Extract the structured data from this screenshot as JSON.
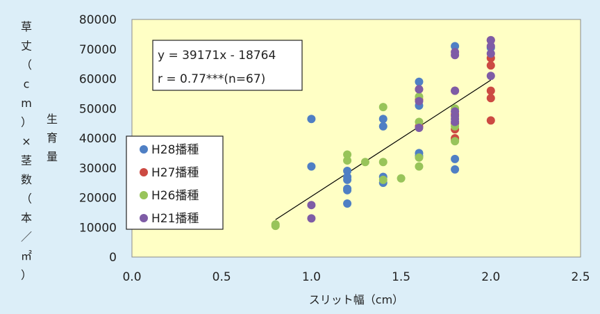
{
  "chart_data": {
    "type": "scatter",
    "title": "",
    "xlabel": "スリット幅（cm）",
    "ylabel_main": "草丈（cm）×茎数（本／㎡）",
    "ylabel_secondary": "生育量",
    "xlim": [
      0,
      2.5
    ],
    "ylim": [
      0,
      80000
    ],
    "x_ticks": [
      "0.0",
      "0.5",
      "1.0",
      "1.5",
      "2.0",
      "2.5"
    ],
    "y_ticks": [
      "0",
      "10000",
      "20000",
      "30000",
      "40000",
      "50000",
      "60000",
      "70000",
      "80000"
    ],
    "grid": false,
    "legend_position": "left",
    "annotation": {
      "equation": "y = 39171x - 18764",
      "r_value": "r = 0.77***(n=67)"
    },
    "trendline": {
      "slope": 39171,
      "intercept": -18764,
      "x_range": [
        0.8,
        2.0
      ]
    },
    "colors": {
      "plot_bg": "#ffffc5",
      "page_bg": "#dceef8",
      "H28": "#4f7fc4",
      "H27": "#cc4a42",
      "H26": "#98c45a",
      "H21": "#7e5ca6"
    },
    "series": [
      {
        "name": "H28播種",
        "color_key": "H28",
        "points": [
          [
            1.0,
            46500
          ],
          [
            1.2,
            29000
          ],
          [
            1.2,
            27000
          ],
          [
            1.2,
            26000
          ],
          [
            1.2,
            23000
          ],
          [
            1.2,
            22500
          ],
          [
            1.2,
            18000
          ],
          [
            1.4,
            46500
          ],
          [
            1.4,
            44000
          ],
          [
            1.4,
            27000
          ],
          [
            1.4,
            25000
          ],
          [
            1.0,
            30500
          ],
          [
            1.6,
            59000
          ],
          [
            1.6,
            51000
          ],
          [
            1.6,
            35000
          ],
          [
            1.6,
            34000
          ],
          [
            1.8,
            71000
          ],
          [
            1.8,
            33000
          ],
          [
            1.8,
            29500
          ],
          [
            2.0,
            70500
          ]
        ]
      },
      {
        "name": "H27播種",
        "color_key": "H27",
        "points": [
          [
            1.6,
            56500
          ],
          [
            1.6,
            53000
          ],
          [
            1.6,
            44000
          ],
          [
            1.8,
            56000
          ],
          [
            1.8,
            48000
          ],
          [
            1.8,
            45000
          ],
          [
            1.8,
            43000
          ],
          [
            1.8,
            40000
          ],
          [
            1.8,
            39500
          ],
          [
            2.0,
            73000
          ],
          [
            2.0,
            67000
          ],
          [
            2.0,
            64500
          ],
          [
            2.0,
            56000
          ],
          [
            2.0,
            53500
          ],
          [
            2.0,
            46000
          ]
        ]
      },
      {
        "name": "H26播種",
        "color_key": "H26",
        "points": [
          [
            0.8,
            11000
          ],
          [
            0.8,
            10500
          ],
          [
            1.2,
            34500
          ],
          [
            1.2,
            32500
          ],
          [
            1.3,
            32000
          ],
          [
            1.4,
            50500
          ],
          [
            1.4,
            32000
          ],
          [
            1.4,
            26000
          ],
          [
            1.5,
            26500
          ],
          [
            1.6,
            54000
          ],
          [
            1.6,
            45500
          ],
          [
            1.6,
            33500
          ],
          [
            1.6,
            30500
          ],
          [
            1.8,
            50000
          ],
          [
            1.8,
            44000
          ],
          [
            1.8,
            39000
          ]
        ]
      },
      {
        "name": "H21播種",
        "color_key": "H21",
        "points": [
          [
            1.0,
            17500
          ],
          [
            1.0,
            13000
          ],
          [
            1.6,
            56500
          ],
          [
            1.6,
            52500
          ],
          [
            1.6,
            43500
          ],
          [
            1.8,
            69000
          ],
          [
            1.8,
            68000
          ],
          [
            1.8,
            56000
          ],
          [
            1.8,
            49000
          ],
          [
            1.8,
            47500
          ],
          [
            1.8,
            46500
          ],
          [
            1.8,
            45500
          ],
          [
            2.0,
            73000
          ],
          [
            2.0,
            71000
          ],
          [
            2.0,
            68500
          ],
          [
            2.0,
            61000
          ]
        ]
      }
    ]
  }
}
